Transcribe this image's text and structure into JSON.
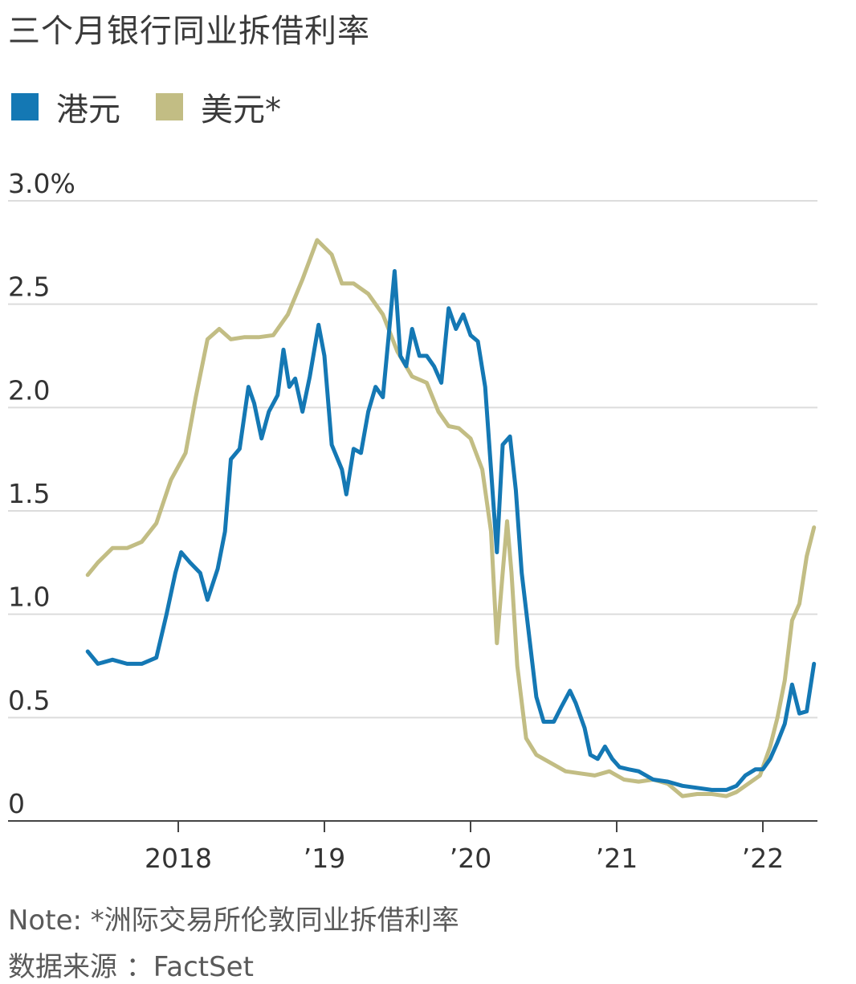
{
  "chart_data": {
    "type": "line",
    "title": "三个月银行同业拆借利率",
    "ylabel": "",
    "xlabel": "",
    "ylim": [
      0,
      3.0
    ],
    "xlim": [
      2017.33,
      2022.38
    ],
    "yticks": [
      {
        "value": 0,
        "label": "0"
      },
      {
        "value": 0.5,
        "label": "0.5"
      },
      {
        "value": 1.0,
        "label": "1.0"
      },
      {
        "value": 1.5,
        "label": "1.5"
      },
      {
        "value": 2.0,
        "label": "2.0"
      },
      {
        "value": 2.5,
        "label": "2.5"
      },
      {
        "value": 3.0,
        "label": "3.0%"
      }
    ],
    "xticks": [
      {
        "value": 2018,
        "label": "2018"
      },
      {
        "value": 2019,
        "label": "’19"
      },
      {
        "value": 2020,
        "label": "’20"
      },
      {
        "value": 2021,
        "label": "’21"
      },
      {
        "value": 2022,
        "label": "’22"
      }
    ],
    "grid": true,
    "legend_position": "top-left",
    "series": [
      {
        "name": "港元",
        "color": "#1478b4",
        "points": [
          [
            2017.38,
            0.82
          ],
          [
            2017.45,
            0.76
          ],
          [
            2017.55,
            0.78
          ],
          [
            2017.65,
            0.76
          ],
          [
            2017.75,
            0.76
          ],
          [
            2017.85,
            0.79
          ],
          [
            2017.92,
            1.0
          ],
          [
            2017.98,
            1.2
          ],
          [
            2018.02,
            1.3
          ],
          [
            2018.08,
            1.25
          ],
          [
            2018.15,
            1.2
          ],
          [
            2018.2,
            1.07
          ],
          [
            2018.27,
            1.22
          ],
          [
            2018.32,
            1.4
          ],
          [
            2018.36,
            1.75
          ],
          [
            2018.42,
            1.8
          ],
          [
            2018.48,
            2.1
          ],
          [
            2018.52,
            2.02
          ],
          [
            2018.57,
            1.85
          ],
          [
            2018.62,
            1.98
          ],
          [
            2018.68,
            2.06
          ],
          [
            2018.72,
            2.28
          ],
          [
            2018.76,
            2.1
          ],
          [
            2018.8,
            2.14
          ],
          [
            2018.85,
            1.98
          ],
          [
            2018.9,
            2.15
          ],
          [
            2018.96,
            2.4
          ],
          [
            2019.0,
            2.25
          ],
          [
            2019.05,
            1.82
          ],
          [
            2019.12,
            1.7
          ],
          [
            2019.15,
            1.58
          ],
          [
            2019.2,
            1.8
          ],
          [
            2019.25,
            1.78
          ],
          [
            2019.3,
            1.98
          ],
          [
            2019.35,
            2.1
          ],
          [
            2019.4,
            2.05
          ],
          [
            2019.44,
            2.35
          ],
          [
            2019.48,
            2.66
          ],
          [
            2019.52,
            2.25
          ],
          [
            2019.56,
            2.2
          ],
          [
            2019.6,
            2.38
          ],
          [
            2019.65,
            2.25
          ],
          [
            2019.7,
            2.25
          ],
          [
            2019.75,
            2.2
          ],
          [
            2019.8,
            2.12
          ],
          [
            2019.85,
            2.48
          ],
          [
            2019.9,
            2.38
          ],
          [
            2019.95,
            2.45
          ],
          [
            2020.0,
            2.35
          ],
          [
            2020.05,
            2.32
          ],
          [
            2020.1,
            2.1
          ],
          [
            2020.15,
            1.6
          ],
          [
            2020.18,
            1.3
          ],
          [
            2020.22,
            1.82
          ],
          [
            2020.27,
            1.86
          ],
          [
            2020.31,
            1.6
          ],
          [
            2020.35,
            1.2
          ],
          [
            2020.4,
            0.9
          ],
          [
            2020.45,
            0.6
          ],
          [
            2020.5,
            0.48
          ],
          [
            2020.57,
            0.48
          ],
          [
            2020.62,
            0.55
          ],
          [
            2020.68,
            0.63
          ],
          [
            2020.72,
            0.57
          ],
          [
            2020.78,
            0.45
          ],
          [
            2020.82,
            0.32
          ],
          [
            2020.87,
            0.3
          ],
          [
            2020.92,
            0.36
          ],
          [
            2020.97,
            0.3
          ],
          [
            2021.02,
            0.26
          ],
          [
            2021.08,
            0.25
          ],
          [
            2021.15,
            0.24
          ],
          [
            2021.25,
            0.2
          ],
          [
            2021.35,
            0.19
          ],
          [
            2021.45,
            0.17
          ],
          [
            2021.55,
            0.16
          ],
          [
            2021.65,
            0.15
          ],
          [
            2021.75,
            0.15
          ],
          [
            2021.82,
            0.17
          ],
          [
            2021.88,
            0.22
          ],
          [
            2021.95,
            0.25
          ],
          [
            2022.0,
            0.25
          ],
          [
            2022.05,
            0.3
          ],
          [
            2022.1,
            0.38
          ],
          [
            2022.15,
            0.47
          ],
          [
            2022.2,
            0.66
          ],
          [
            2022.25,
            0.52
          ],
          [
            2022.3,
            0.53
          ],
          [
            2022.35,
            0.76
          ]
        ]
      },
      {
        "name": "美元*",
        "color": "#c2bd84",
        "points": [
          [
            2017.38,
            1.19
          ],
          [
            2017.45,
            1.25
          ],
          [
            2017.55,
            1.32
          ],
          [
            2017.65,
            1.32
          ],
          [
            2017.75,
            1.35
          ],
          [
            2017.85,
            1.44
          ],
          [
            2017.95,
            1.65
          ],
          [
            2018.05,
            1.78
          ],
          [
            2018.12,
            2.05
          ],
          [
            2018.2,
            2.33
          ],
          [
            2018.28,
            2.38
          ],
          [
            2018.36,
            2.33
          ],
          [
            2018.45,
            2.34
          ],
          [
            2018.55,
            2.34
          ],
          [
            2018.65,
            2.35
          ],
          [
            2018.75,
            2.45
          ],
          [
            2018.85,
            2.62
          ],
          [
            2018.95,
            2.81
          ],
          [
            2019.05,
            2.74
          ],
          [
            2019.12,
            2.6
          ],
          [
            2019.2,
            2.6
          ],
          [
            2019.3,
            2.55
          ],
          [
            2019.4,
            2.45
          ],
          [
            2019.5,
            2.27
          ],
          [
            2019.6,
            2.15
          ],
          [
            2019.7,
            2.12
          ],
          [
            2019.78,
            1.98
          ],
          [
            2019.85,
            1.91
          ],
          [
            2019.92,
            1.9
          ],
          [
            2020.0,
            1.85
          ],
          [
            2020.08,
            1.7
          ],
          [
            2020.14,
            1.4
          ],
          [
            2020.18,
            0.86
          ],
          [
            2020.22,
            1.2
          ],
          [
            2020.25,
            1.45
          ],
          [
            2020.28,
            1.2
          ],
          [
            2020.32,
            0.75
          ],
          [
            2020.38,
            0.4
          ],
          [
            2020.45,
            0.32
          ],
          [
            2020.55,
            0.28
          ],
          [
            2020.65,
            0.24
          ],
          [
            2020.75,
            0.23
          ],
          [
            2020.85,
            0.22
          ],
          [
            2020.95,
            0.24
          ],
          [
            2021.05,
            0.2
          ],
          [
            2021.15,
            0.19
          ],
          [
            2021.25,
            0.2
          ],
          [
            2021.35,
            0.18
          ],
          [
            2021.45,
            0.12
          ],
          [
            2021.55,
            0.13
          ],
          [
            2021.65,
            0.13
          ],
          [
            2021.75,
            0.12
          ],
          [
            2021.82,
            0.14
          ],
          [
            2021.9,
            0.18
          ],
          [
            2021.98,
            0.22
          ],
          [
            2022.05,
            0.36
          ],
          [
            2022.1,
            0.5
          ],
          [
            2022.15,
            0.68
          ],
          [
            2022.2,
            0.97
          ],
          [
            2022.25,
            1.05
          ],
          [
            2022.3,
            1.28
          ],
          [
            2022.35,
            1.42
          ]
        ]
      }
    ],
    "note": "Note: *洲际交易所伦敦同业拆借利率",
    "source": "数据来源 ：FactSet"
  }
}
